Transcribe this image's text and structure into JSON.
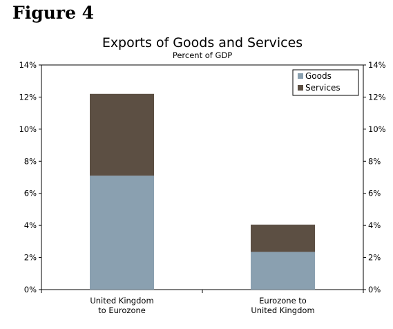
{
  "figure_label": "Figure 4",
  "chart_data": {
    "type": "bar",
    "stacked": true,
    "title": "Exports of Goods and Services",
    "subtitle": "Percent of GDP",
    "categories": [
      [
        "United Kingdom",
        "to Eurozone"
      ],
      [
        "Eurozone to",
        "United Kingdom"
      ]
    ],
    "series": [
      {
        "name": "Goods",
        "color": "#8aa0b0",
        "values": [
          7.1,
          2.35
        ]
      },
      {
        "name": "Services",
        "color": "#5c4f43",
        "values": [
          5.1,
          1.7
        ]
      }
    ],
    "ylim": [
      0,
      14
    ],
    "yticks": [
      "0%",
      "2%",
      "4%",
      "6%",
      "8%",
      "10%",
      "12%",
      "14%"
    ],
    "ytick_values": [
      0,
      2,
      4,
      6,
      8,
      10,
      12,
      14
    ],
    "y_axis_both_sides": true,
    "grid": false,
    "legend_position": "top-right"
  }
}
